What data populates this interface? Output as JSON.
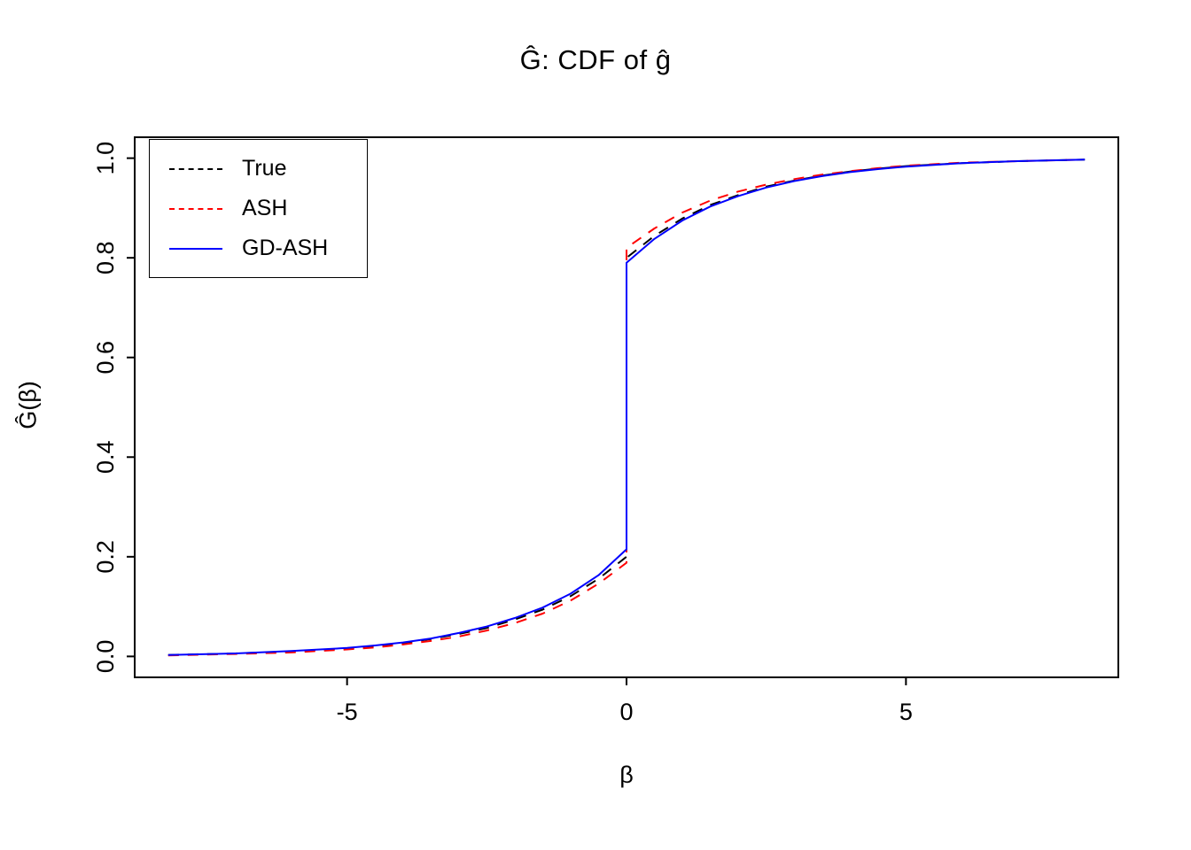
{
  "chart_data": {
    "type": "line",
    "title": "Ĝ: CDF of ĝ",
    "xlabel": "β",
    "ylabel": "Ĝ(β)",
    "xlim": [
      -8.8,
      8.8
    ],
    "ylim": [
      -0.042,
      1.042
    ],
    "x_ticks": [
      -5,
      0,
      5
    ],
    "x_tick_labels": [
      "-5",
      "0",
      "5"
    ],
    "y_ticks": [
      0.0,
      0.2,
      0.4,
      0.6,
      0.8,
      1.0
    ],
    "y_tick_labels": [
      "0.0",
      "0.2",
      "0.4",
      "0.6",
      "0.8",
      "1.0"
    ],
    "grid": false,
    "legend": {
      "position": "top-left"
    },
    "x": [
      -8.2,
      -7,
      -6,
      -5,
      -4.5,
      -4,
      -3.5,
      -3,
      -2.5,
      -2,
      -1.5,
      -1,
      -0.5,
      0,
      0,
      0.5,
      1,
      1.5,
      2,
      2.5,
      3,
      3.5,
      4,
      4.5,
      5,
      6,
      7,
      8.2
    ],
    "series": [
      {
        "name": "True",
        "color": "#000000",
        "dash": "dashed",
        "y": [
          0.003,
          0.006,
          0.01,
          0.016,
          0.021,
          0.027,
          0.035,
          0.045,
          0.057,
          0.074,
          0.094,
          0.121,
          0.156,
          0.2,
          0.8,
          0.844,
          0.879,
          0.906,
          0.926,
          0.943,
          0.955,
          0.965,
          0.973,
          0.979,
          0.984,
          0.99,
          0.994,
          0.997
        ]
      },
      {
        "name": "ASH",
        "color": "#FF0000",
        "dash": "dashed",
        "y": [
          0.002,
          0.005,
          0.008,
          0.014,
          0.018,
          0.024,
          0.031,
          0.04,
          0.052,
          0.067,
          0.086,
          0.112,
          0.146,
          0.188,
          0.82,
          0.859,
          0.891,
          0.915,
          0.933,
          0.947,
          0.958,
          0.967,
          0.974,
          0.98,
          0.985,
          0.991,
          0.994,
          0.997
        ]
      },
      {
        "name": "GD-ASH",
        "color": "#0000FF",
        "dash": "solid",
        "y": [
          0.003,
          0.006,
          0.011,
          0.017,
          0.022,
          0.028,
          0.036,
          0.047,
          0.06,
          0.077,
          0.098,
          0.126,
          0.163,
          0.215,
          0.79,
          0.838,
          0.875,
          0.903,
          0.924,
          0.941,
          0.954,
          0.964,
          0.972,
          0.978,
          0.983,
          0.99,
          0.994,
          0.997
        ]
      }
    ]
  }
}
